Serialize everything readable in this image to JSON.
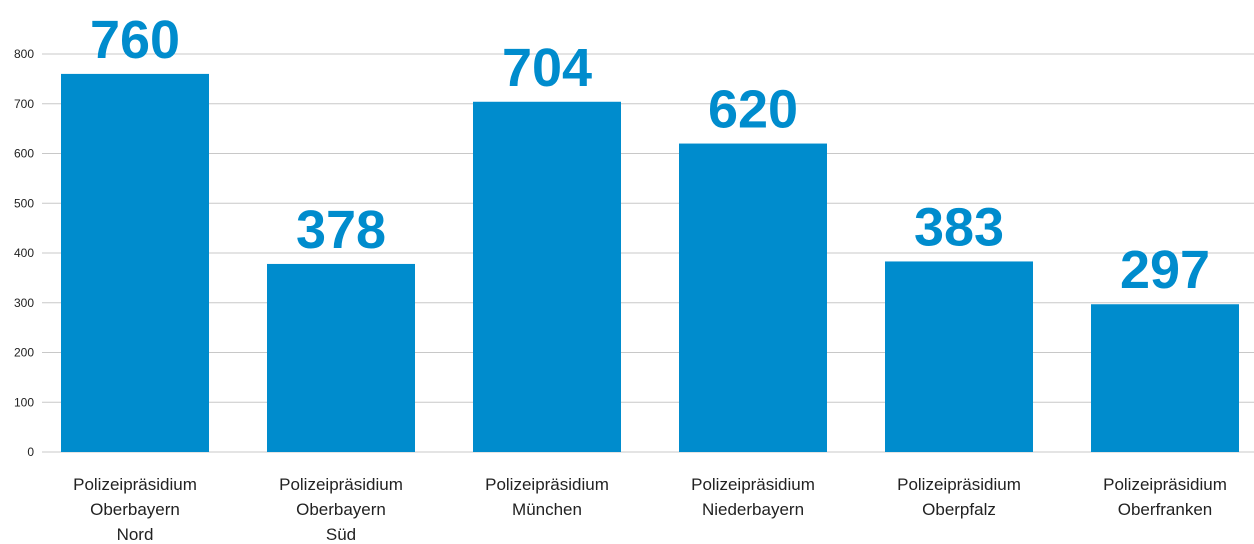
{
  "chart_data": {
    "type": "bar",
    "title": "",
    "xlabel": "",
    "ylabel": "",
    "categories": [
      [
        "Polizeipräsidium",
        "Oberbayern",
        "Nord"
      ],
      [
        "Polizeipräsidium",
        "Oberbayern",
        "Süd"
      ],
      [
        "Polizeipräsidium",
        "München"
      ],
      [
        "Polizeipräsidium",
        "Niederbayern"
      ],
      [
        "Polizeipräsidium",
        "Oberpfalz"
      ],
      [
        "Polizeipräsidium",
        "Oberfranken"
      ]
    ],
    "values": [
      760,
      378,
      704,
      620,
      383,
      297
    ],
    "ylim": [
      0,
      800
    ],
    "yticks": [
      0,
      100,
      200,
      300,
      400,
      500,
      600,
      700,
      800
    ],
    "grid": true,
    "legend": "none",
    "bar_color": "#008ccd",
    "label_color": "#008ccd"
  }
}
